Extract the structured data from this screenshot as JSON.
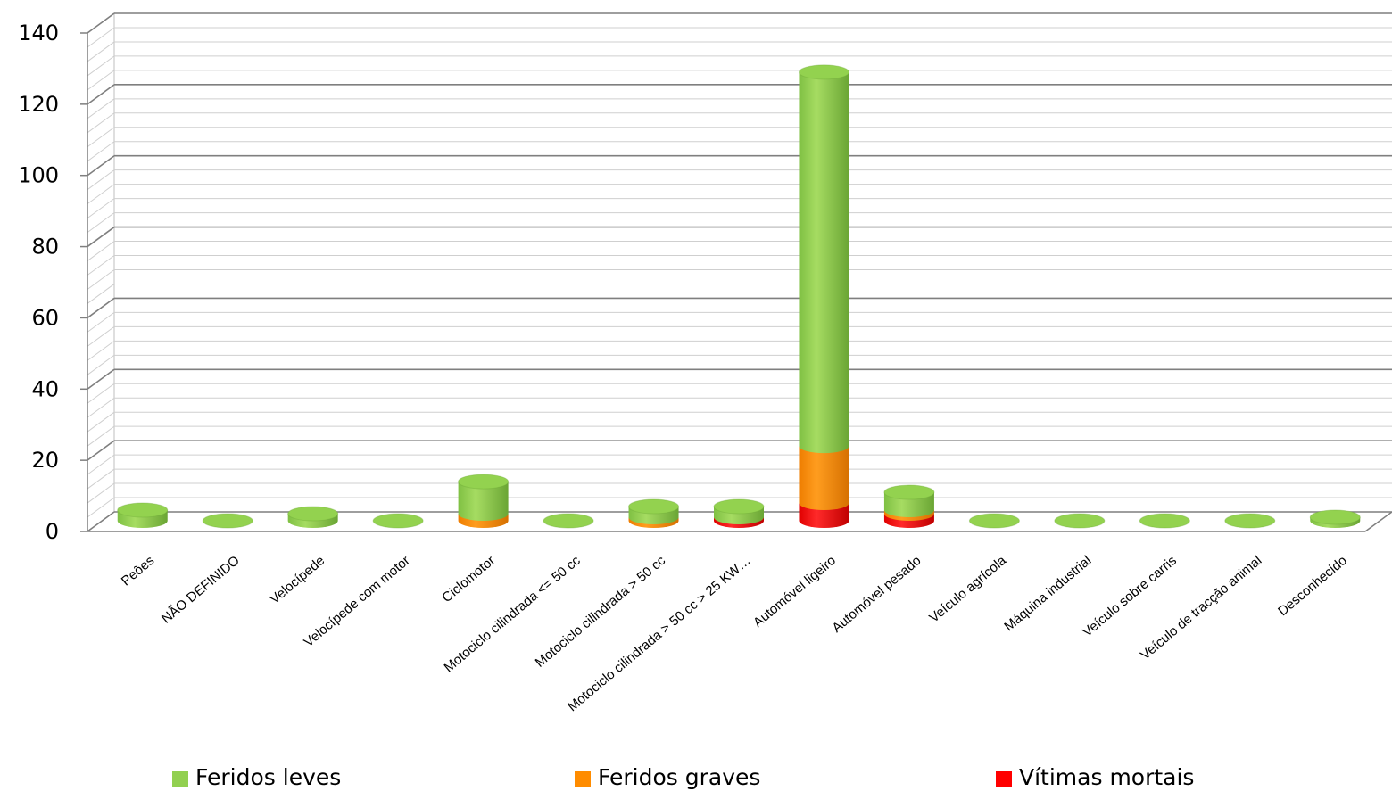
{
  "chart_data": {
    "type": "bar",
    "stacked": true,
    "style": "3d-cylinder",
    "title": "",
    "xlabel": "",
    "ylabel": "",
    "ylim": [
      0,
      140
    ],
    "yticks": [
      0,
      20,
      40,
      60,
      80,
      100,
      120,
      140
    ],
    "grid": true,
    "legend_position": "bottom",
    "categories": [
      "Peões",
      "NÃO DEFINIDO",
      "Velocípede",
      "Velocípede com motor",
      "Ciclomotor",
      "Motociclo cilindrada <= 50 cc",
      "Motociclo cilindrada >  50 cc",
      "Motociclo cilindrada > 50 cc > 25 KW…",
      "Automóvel ligeiro",
      "Automóvel pesado",
      "Veículo agrícola",
      "Máquina industrial",
      "Veículo sobre carris",
      "Veículo de tracção animal",
      "Desconhecido"
    ],
    "series": [
      {
        "name": "Vítimas mortais",
        "color": "#ff0000",
        "values": [
          0,
          0,
          0,
          0,
          0,
          0,
          0,
          1,
          5,
          2,
          0,
          0,
          0,
          0,
          0
        ]
      },
      {
        "name": "Feridos graves",
        "color": "#ff8c00",
        "values": [
          0,
          0,
          0,
          0,
          2,
          0,
          1,
          0,
          16,
          1,
          0,
          0,
          0,
          0,
          0
        ]
      },
      {
        "name": "Feridos leves",
        "color": "#92d050",
        "values": [
          3,
          0,
          2,
          0,
          9,
          0,
          3,
          3,
          105,
          5,
          0,
          0,
          0,
          0,
          1
        ]
      }
    ]
  }
}
